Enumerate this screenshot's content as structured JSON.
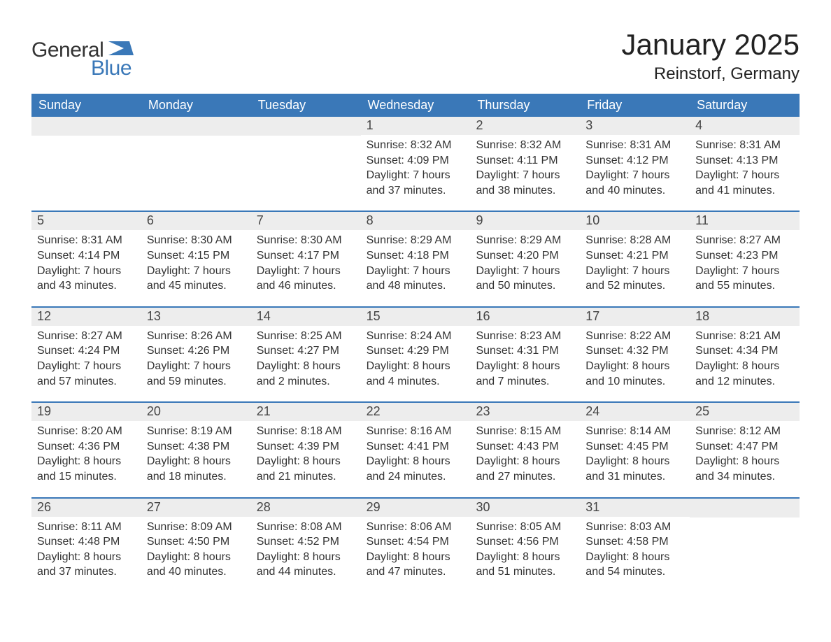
{
  "logo": {
    "text1": "General",
    "text2": "Blue"
  },
  "title": "January 2025",
  "location": "Reinstorf, Germany",
  "colors": {
    "header_bg": "#3a78b8",
    "header_text": "#ffffff",
    "daynum_bg": "#ededed",
    "body_bg": "#ffffff",
    "text": "#333333",
    "logo_blue": "#3a78b8"
  },
  "day_names": [
    "Sunday",
    "Monday",
    "Tuesday",
    "Wednesday",
    "Thursday",
    "Friday",
    "Saturday"
  ],
  "weeks": [
    [
      {
        "n": "",
        "sr": "",
        "ss": "",
        "d1": "",
        "d2": ""
      },
      {
        "n": "",
        "sr": "",
        "ss": "",
        "d1": "",
        "d2": ""
      },
      {
        "n": "",
        "sr": "",
        "ss": "",
        "d1": "",
        "d2": ""
      },
      {
        "n": "1",
        "sr": "Sunrise: 8:32 AM",
        "ss": "Sunset: 4:09 PM",
        "d1": "Daylight: 7 hours",
        "d2": "and 37 minutes."
      },
      {
        "n": "2",
        "sr": "Sunrise: 8:32 AM",
        "ss": "Sunset: 4:11 PM",
        "d1": "Daylight: 7 hours",
        "d2": "and 38 minutes."
      },
      {
        "n": "3",
        "sr": "Sunrise: 8:31 AM",
        "ss": "Sunset: 4:12 PM",
        "d1": "Daylight: 7 hours",
        "d2": "and 40 minutes."
      },
      {
        "n": "4",
        "sr": "Sunrise: 8:31 AM",
        "ss": "Sunset: 4:13 PM",
        "d1": "Daylight: 7 hours",
        "d2": "and 41 minutes."
      }
    ],
    [
      {
        "n": "5",
        "sr": "Sunrise: 8:31 AM",
        "ss": "Sunset: 4:14 PM",
        "d1": "Daylight: 7 hours",
        "d2": "and 43 minutes."
      },
      {
        "n": "6",
        "sr": "Sunrise: 8:30 AM",
        "ss": "Sunset: 4:15 PM",
        "d1": "Daylight: 7 hours",
        "d2": "and 45 minutes."
      },
      {
        "n": "7",
        "sr": "Sunrise: 8:30 AM",
        "ss": "Sunset: 4:17 PM",
        "d1": "Daylight: 7 hours",
        "d2": "and 46 minutes."
      },
      {
        "n": "8",
        "sr": "Sunrise: 8:29 AM",
        "ss": "Sunset: 4:18 PM",
        "d1": "Daylight: 7 hours",
        "d2": "and 48 minutes."
      },
      {
        "n": "9",
        "sr": "Sunrise: 8:29 AM",
        "ss": "Sunset: 4:20 PM",
        "d1": "Daylight: 7 hours",
        "d2": "and 50 minutes."
      },
      {
        "n": "10",
        "sr": "Sunrise: 8:28 AM",
        "ss": "Sunset: 4:21 PM",
        "d1": "Daylight: 7 hours",
        "d2": "and 52 minutes."
      },
      {
        "n": "11",
        "sr": "Sunrise: 8:27 AM",
        "ss": "Sunset: 4:23 PM",
        "d1": "Daylight: 7 hours",
        "d2": "and 55 minutes."
      }
    ],
    [
      {
        "n": "12",
        "sr": "Sunrise: 8:27 AM",
        "ss": "Sunset: 4:24 PM",
        "d1": "Daylight: 7 hours",
        "d2": "and 57 minutes."
      },
      {
        "n": "13",
        "sr": "Sunrise: 8:26 AM",
        "ss": "Sunset: 4:26 PM",
        "d1": "Daylight: 7 hours",
        "d2": "and 59 minutes."
      },
      {
        "n": "14",
        "sr": "Sunrise: 8:25 AM",
        "ss": "Sunset: 4:27 PM",
        "d1": "Daylight: 8 hours",
        "d2": "and 2 minutes."
      },
      {
        "n": "15",
        "sr": "Sunrise: 8:24 AM",
        "ss": "Sunset: 4:29 PM",
        "d1": "Daylight: 8 hours",
        "d2": "and 4 minutes."
      },
      {
        "n": "16",
        "sr": "Sunrise: 8:23 AM",
        "ss": "Sunset: 4:31 PM",
        "d1": "Daylight: 8 hours",
        "d2": "and 7 minutes."
      },
      {
        "n": "17",
        "sr": "Sunrise: 8:22 AM",
        "ss": "Sunset: 4:32 PM",
        "d1": "Daylight: 8 hours",
        "d2": "and 10 minutes."
      },
      {
        "n": "18",
        "sr": "Sunrise: 8:21 AM",
        "ss": "Sunset: 4:34 PM",
        "d1": "Daylight: 8 hours",
        "d2": "and 12 minutes."
      }
    ],
    [
      {
        "n": "19",
        "sr": "Sunrise: 8:20 AM",
        "ss": "Sunset: 4:36 PM",
        "d1": "Daylight: 8 hours",
        "d2": "and 15 minutes."
      },
      {
        "n": "20",
        "sr": "Sunrise: 8:19 AM",
        "ss": "Sunset: 4:38 PM",
        "d1": "Daylight: 8 hours",
        "d2": "and 18 minutes."
      },
      {
        "n": "21",
        "sr": "Sunrise: 8:18 AM",
        "ss": "Sunset: 4:39 PM",
        "d1": "Daylight: 8 hours",
        "d2": "and 21 minutes."
      },
      {
        "n": "22",
        "sr": "Sunrise: 8:16 AM",
        "ss": "Sunset: 4:41 PM",
        "d1": "Daylight: 8 hours",
        "d2": "and 24 minutes."
      },
      {
        "n": "23",
        "sr": "Sunrise: 8:15 AM",
        "ss": "Sunset: 4:43 PM",
        "d1": "Daylight: 8 hours",
        "d2": "and 27 minutes."
      },
      {
        "n": "24",
        "sr": "Sunrise: 8:14 AM",
        "ss": "Sunset: 4:45 PM",
        "d1": "Daylight: 8 hours",
        "d2": "and 31 minutes."
      },
      {
        "n": "25",
        "sr": "Sunrise: 8:12 AM",
        "ss": "Sunset: 4:47 PM",
        "d1": "Daylight: 8 hours",
        "d2": "and 34 minutes."
      }
    ],
    [
      {
        "n": "26",
        "sr": "Sunrise: 8:11 AM",
        "ss": "Sunset: 4:48 PM",
        "d1": "Daylight: 8 hours",
        "d2": "and 37 minutes."
      },
      {
        "n": "27",
        "sr": "Sunrise: 8:09 AM",
        "ss": "Sunset: 4:50 PM",
        "d1": "Daylight: 8 hours",
        "d2": "and 40 minutes."
      },
      {
        "n": "28",
        "sr": "Sunrise: 8:08 AM",
        "ss": "Sunset: 4:52 PM",
        "d1": "Daylight: 8 hours",
        "d2": "and 44 minutes."
      },
      {
        "n": "29",
        "sr": "Sunrise: 8:06 AM",
        "ss": "Sunset: 4:54 PM",
        "d1": "Daylight: 8 hours",
        "d2": "and 47 minutes."
      },
      {
        "n": "30",
        "sr": "Sunrise: 8:05 AM",
        "ss": "Sunset: 4:56 PM",
        "d1": "Daylight: 8 hours",
        "d2": "and 51 minutes."
      },
      {
        "n": "31",
        "sr": "Sunrise: 8:03 AM",
        "ss": "Sunset: 4:58 PM",
        "d1": "Daylight: 8 hours",
        "d2": "and 54 minutes."
      },
      {
        "n": "",
        "sr": "",
        "ss": "",
        "d1": "",
        "d2": ""
      }
    ]
  ]
}
